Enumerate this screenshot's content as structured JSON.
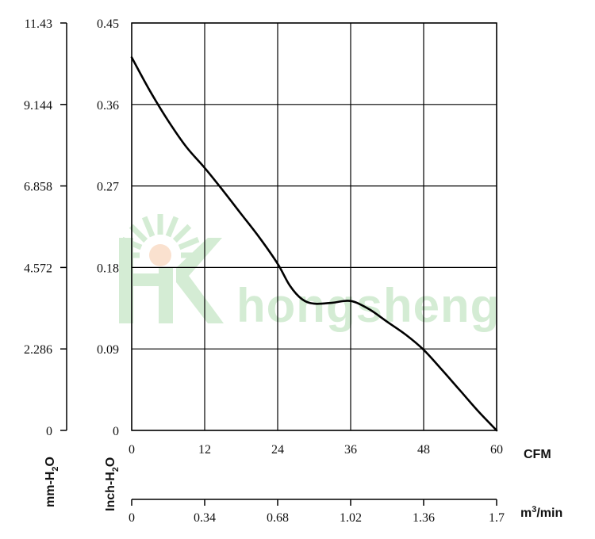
{
  "chart_data": {
    "type": "line",
    "title": "",
    "grid": true,
    "x": [
      0,
      3,
      6,
      9,
      12,
      15,
      18,
      21,
      24,
      26,
      28,
      30,
      33,
      36,
      39,
      42,
      45,
      48,
      51,
      54,
      57,
      60
    ],
    "series": [
      {
        "values": [
          0.412,
          0.375,
          0.342,
          0.313,
          0.29,
          0.265,
          0.239,
          0.213,
          0.184,
          0.16,
          0.145,
          0.14,
          0.141,
          0.143,
          0.134,
          0.12,
          0.106,
          0.089,
          0.067,
          0.044,
          0.021,
          0.0
        ],
        "color": "#000000"
      }
    ],
    "x_axis_primary": {
      "unit_label": "CFM",
      "lim": [
        0,
        60
      ],
      "ticks": [
        0,
        12,
        24,
        36,
        48,
        60
      ],
      "tick_labels": [
        "0",
        "12",
        "24",
        "36",
        "48",
        "60"
      ]
    },
    "x_axis_secondary": {
      "unit_label": "m³/min",
      "unit_base": "m",
      "unit_sup": "3",
      "unit_tail": "/min",
      "lim": [
        0,
        1.7
      ],
      "ticks": [
        0,
        0.34,
        0.68,
        1.02,
        1.36,
        1.7
      ],
      "tick_labels": [
        "0",
        "0.34",
        "0.68",
        "1.02",
        "1.36",
        "1.7"
      ]
    },
    "y_axis_primary": {
      "unit_label": "Inch-H2O",
      "unit_base": "Inch-H",
      "unit_sub": "2",
      "unit_tail": "O",
      "lim": [
        0,
        0.45
      ],
      "ticks": [
        0,
        0.09,
        0.18,
        0.27,
        0.36,
        0.45
      ],
      "tick_labels": [
        "0",
        "0.09",
        "0.18",
        "0.27",
        "0.36",
        "0.45"
      ]
    },
    "y_axis_secondary": {
      "unit_label": "mm-H2O",
      "unit_base": "mm-H",
      "unit_sub": "2",
      "unit_tail": "O",
      "lim": [
        0,
        11.43
      ],
      "ticks": [
        0,
        2.286,
        4.572,
        6.858,
        9.144,
        11.43
      ],
      "tick_labels": [
        "0",
        "2.286",
        "4.572",
        "6.858",
        "9.144",
        "11.43"
      ]
    }
  },
  "watermark": {
    "text": "hongsheng",
    "color": "#7cc57c"
  }
}
